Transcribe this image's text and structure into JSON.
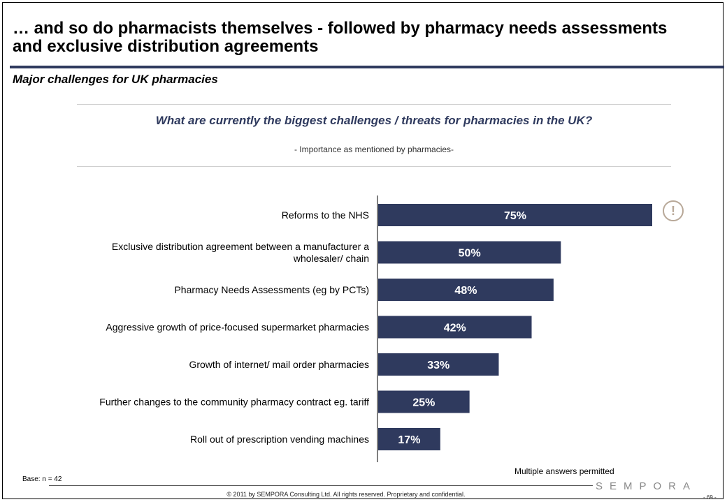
{
  "slide": {
    "title": "… and so do pharmacists themselves -  followed by pharmacy needs assessments and exclusive distribution agreements",
    "subtitle": "Major challenges for UK pharmacies",
    "question": "What are currently the biggest challenges / threats for pharmacies in the UK?",
    "question_sub": "- Importance as mentioned by pharmacies-",
    "alert_symbol": "!",
    "base": "Base: n = 42",
    "note": "Multiple answers permitted",
    "copyright": "© 2011 by SEMPORA Consulting Ltd. All rights reserved. Proprietary and confidential.",
    "logo": "SEMPORA",
    "page_number": "- 69 -"
  },
  "colors": {
    "bar": "#2f3a5e",
    "accent": "#2f3a5e",
    "alert": "#b8a898"
  },
  "chart_data": {
    "type": "bar",
    "orientation": "horizontal",
    "categories": [
      "Reforms to the NHS",
      "Exclusive distribution agreement between a manufacturer a wholesaler/ chain",
      "Pharmacy Needs Assessments (eg by PCTs)",
      "Aggressive growth of price-focused supermarket pharmacies",
      "Growth of internet/ mail order pharmacies",
      "Further changes to the community pharmacy contract eg. tariff",
      "Roll out of prescription vending machines"
    ],
    "category_lines": [
      [
        "Reforms to the NHS"
      ],
      [
        "Exclusive distribution agreement between a manufacturer a",
        "wholesaler/ chain"
      ],
      [
        "Pharmacy Needs Assessments (eg by PCTs)"
      ],
      [
        "Aggressive growth of price-focused supermarket pharmacies"
      ],
      [
        "Growth of internet/ mail order pharmacies"
      ],
      [
        "Further changes to the community pharmacy contract eg. tariff"
      ],
      [
        "Roll out of prescription vending machines"
      ]
    ],
    "values": [
      75,
      50,
      48,
      42,
      33,
      25,
      17
    ],
    "data_labels": [
      "75%",
      "50%",
      "48%",
      "42%",
      "33%",
      "25%",
      "17%"
    ],
    "xlim": [
      0,
      75
    ],
    "unit": "%",
    "grid": false,
    "legend": "none"
  }
}
